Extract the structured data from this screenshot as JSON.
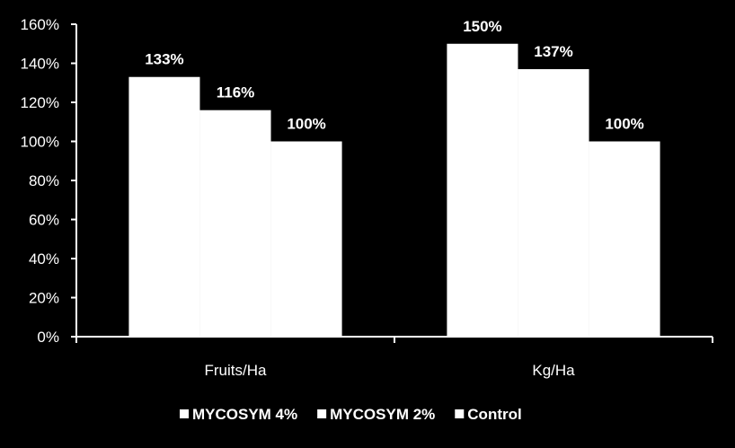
{
  "chart_data": {
    "type": "bar",
    "title": "",
    "xlabel": "",
    "ylabel": "",
    "categories": [
      "Fruits/Ha",
      "Kg/Ha"
    ],
    "series": [
      {
        "name": "MYCOSYM 4%",
        "values": [
          133,
          150
        ],
        "labels": [
          "133%",
          "150%"
        ]
      },
      {
        "name": "MYCOSYM 2%",
        "values": [
          116,
          137
        ],
        "labels": [
          "116%",
          "137%"
        ]
      },
      {
        "name": "Control",
        "values": [
          100,
          100
        ],
        "labels": [
          "100%",
          "100%"
        ]
      }
    ],
    "ylim": [
      0,
      160
    ],
    "yticks": [
      0,
      20,
      40,
      60,
      80,
      100,
      120,
      140,
      160
    ],
    "ytick_labels": [
      "0%",
      "20%",
      "40%",
      "60%",
      "80%",
      "100%",
      "120%",
      "140%",
      "160%"
    ],
    "grid": false,
    "legend_position": "bottom",
    "colors": {
      "background": "#000000",
      "bar": "#ffffff",
      "text": "#ffffff",
      "axis": "#ffffff"
    }
  }
}
